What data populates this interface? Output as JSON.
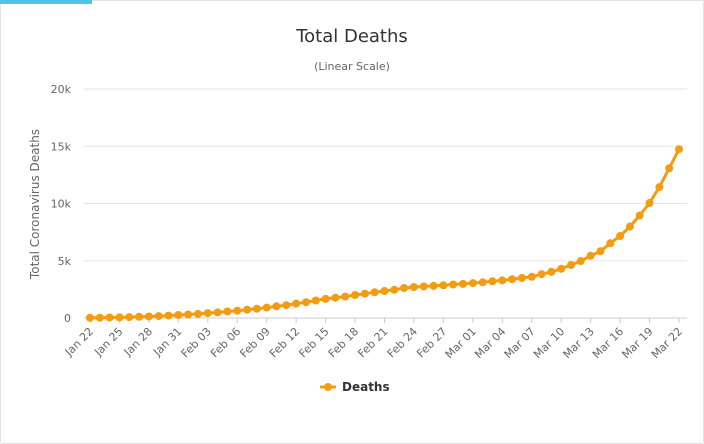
{
  "chart_data": {
    "type": "line",
    "title": "Total Deaths",
    "subtitle": "(Linear Scale)",
    "xlabel": "",
    "ylabel": "Total Coronavirus Deaths",
    "ylim": [
      0,
      20000
    ],
    "yticks": [
      {
        "value": 0,
        "label": "0"
      },
      {
        "value": 5000,
        "label": "5k"
      },
      {
        "value": 10000,
        "label": "10k"
      },
      {
        "value": 15000,
        "label": "15k"
      },
      {
        "value": 20000,
        "label": "20k"
      }
    ],
    "xtick_labels": [
      "Jan 22",
      "Jan 25",
      "Jan 28",
      "Jan 31",
      "Feb 03",
      "Feb 06",
      "Feb 09",
      "Feb 12",
      "Feb 15",
      "Feb 18",
      "Feb 21",
      "Feb 24",
      "Feb 27",
      "Mar 01",
      "Mar 04",
      "Mar 07",
      "Mar 10",
      "Mar 13",
      "Mar 16",
      "Mar 19",
      "Mar 22"
    ],
    "legend": "bottom",
    "grid": true,
    "color": "#f39c12",
    "categories": [
      "Jan 22",
      "Jan 23",
      "Jan 24",
      "Jan 25",
      "Jan 26",
      "Jan 27",
      "Jan 28",
      "Jan 29",
      "Jan 30",
      "Jan 31",
      "Feb 01",
      "Feb 02",
      "Feb 03",
      "Feb 04",
      "Feb 05",
      "Feb 06",
      "Feb 07",
      "Feb 08",
      "Feb 09",
      "Feb 10",
      "Feb 11",
      "Feb 12",
      "Feb 13",
      "Feb 14",
      "Feb 15",
      "Feb 16",
      "Feb 17",
      "Feb 18",
      "Feb 19",
      "Feb 20",
      "Feb 21",
      "Feb 22",
      "Feb 23",
      "Feb 24",
      "Feb 25",
      "Feb 26",
      "Feb 27",
      "Feb 28",
      "Feb 29",
      "Mar 01",
      "Mar 02",
      "Mar 03",
      "Mar 04",
      "Mar 05",
      "Mar 06",
      "Mar 07",
      "Mar 08",
      "Mar 09",
      "Mar 10",
      "Mar 11",
      "Mar 12",
      "Mar 13",
      "Mar 14",
      "Mar 15",
      "Mar 16",
      "Mar 17",
      "Mar 18",
      "Mar 19",
      "Mar 20",
      "Mar 21",
      "Mar 22"
    ],
    "series": [
      {
        "name": "Deaths",
        "values": [
          17,
          25,
          41,
          56,
          80,
          106,
          132,
          170,
          213,
          259,
          304,
          362,
          426,
          492,
          565,
          638,
          724,
          813,
          910,
          1018,
          1115,
          1261,
          1383,
          1526,
          1669,
          1775,
          1873,
          2009,
          2126,
          2247,
          2360,
          2460,
          2618,
          2699,
          2763,
          2800,
          2858,
          2923,
          2977,
          3050,
          3117,
          3202,
          3285,
          3387,
          3494,
          3599,
          3827,
          4025,
          4296,
          4628,
          4981,
          5428,
          5833,
          6520,
          7162,
          7979,
          8956,
          10042,
          11431,
          13070,
          14744
        ]
      }
    ]
  }
}
